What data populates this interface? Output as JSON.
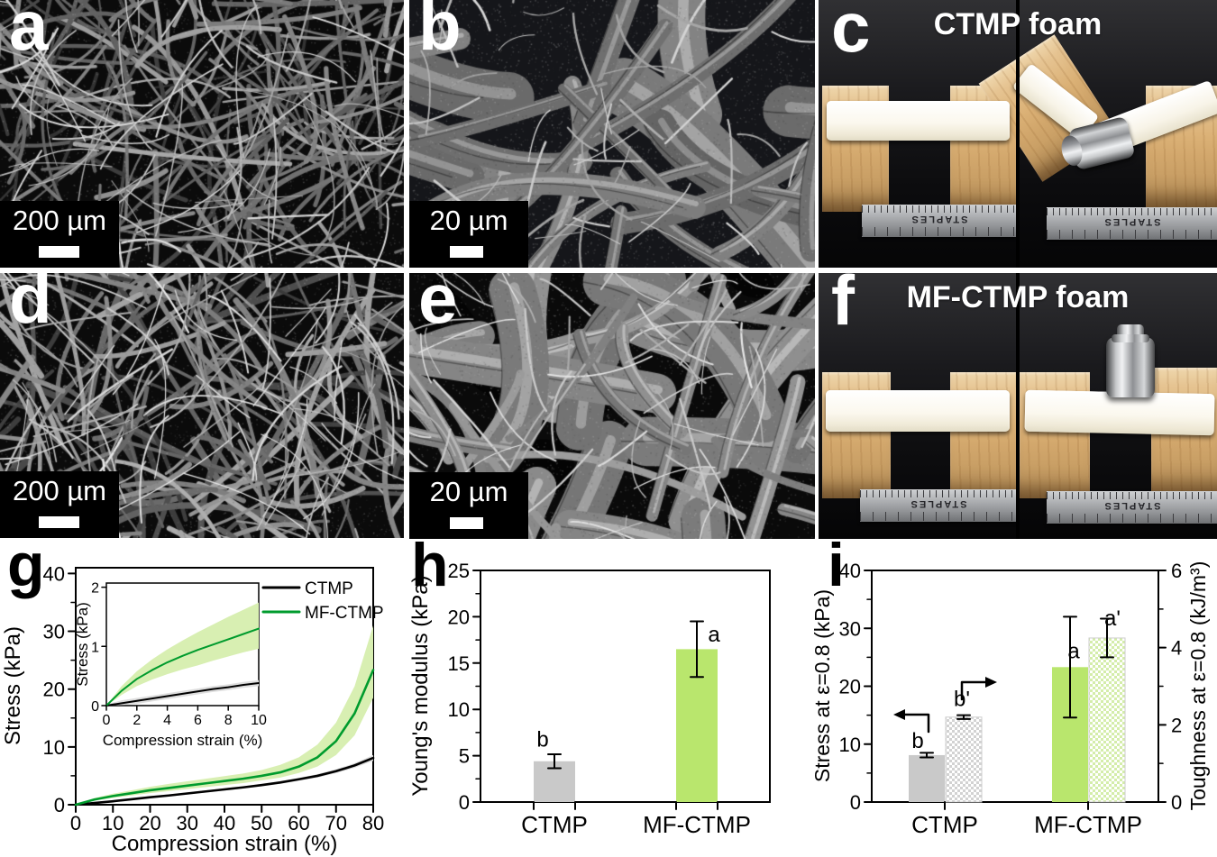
{
  "figure": {
    "panels": {
      "a": {
        "letter": "a",
        "scalebar": "200 µm"
      },
      "b": {
        "letter": "b",
        "scalebar": "20 µm"
      },
      "c": {
        "letter": "c",
        "title": "CTMP foam",
        "ruler_text": "STAPLES"
      },
      "d": {
        "letter": "d",
        "scalebar": "200 µm"
      },
      "e": {
        "letter": "e",
        "scalebar": "20 µm"
      },
      "f": {
        "letter": "f",
        "title": "MF-CTMP foam",
        "ruler_text": "STAPLES"
      },
      "g": {
        "letter": "g"
      },
      "h": {
        "letter": "h"
      },
      "i": {
        "letter": "i"
      }
    }
  },
  "colors": {
    "curve_black": "#000000",
    "curve_green": "#009b2d",
    "band_green": "#d8efb2",
    "band_gray": "#dedede",
    "bar_gray": "#c9c9c9",
    "bar_green": "#b9e66d",
    "checker_gray": "#d2d2d2",
    "checker_green": "#d4edaa"
  },
  "chart_data": [
    {
      "id": "g",
      "type": "line",
      "xlabel": "Compression strain (%)",
      "ylabel": "Stress (kPa)",
      "xlim": [
        0,
        80
      ],
      "ylim": [
        0,
        40
      ],
      "xticks": [
        0,
        10,
        20,
        30,
        40,
        50,
        60,
        70,
        80
      ],
      "yticks": [
        0,
        10,
        20,
        30,
        40
      ],
      "legend": {
        "position": "top-right",
        "entries": [
          {
            "label": "CTMP",
            "color": "#000000"
          },
          {
            "label": "MF-CTMP",
            "color": "#009b2d"
          }
        ]
      },
      "series": [
        {
          "name": "CTMP",
          "color": "#000000",
          "band_color": "#dedede",
          "x": [
            0,
            5,
            10,
            15,
            20,
            25,
            30,
            35,
            40,
            45,
            50,
            55,
            60,
            65,
            70,
            75,
            80
          ],
          "y": [
            0,
            0.3,
            0.6,
            0.95,
            1.3,
            1.6,
            1.95,
            2.3,
            2.65,
            3.0,
            3.4,
            3.85,
            4.4,
            5.0,
            5.8,
            6.8,
            8.1
          ],
          "band_upper": [
            0.05,
            0.45,
            0.78,
            1.12,
            1.48,
            1.8,
            2.15,
            2.5,
            2.85,
            3.2,
            3.62,
            4.1,
            4.65,
            5.3,
            6.15,
            7.2,
            8.6
          ],
          "band_lower": [
            0,
            0.18,
            0.45,
            0.78,
            1.12,
            1.42,
            1.75,
            2.1,
            2.45,
            2.8,
            3.18,
            3.6,
            4.15,
            4.7,
            5.45,
            6.4,
            7.6
          ]
        },
        {
          "name": "MF-CTMP",
          "color": "#009b2d",
          "band_color": "#d8efb2",
          "x": [
            0,
            5,
            10,
            15,
            20,
            25,
            30,
            35,
            40,
            45,
            50,
            55,
            60,
            65,
            70,
            75,
            80
          ],
          "y": [
            0,
            0.9,
            1.5,
            2.0,
            2.5,
            2.9,
            3.3,
            3.7,
            4.1,
            4.5,
            5.0,
            5.6,
            6.6,
            8.2,
            11.0,
            15.8,
            23.3
          ],
          "band_upper": [
            0,
            1.15,
            1.9,
            2.5,
            3.1,
            3.6,
            4.05,
            4.5,
            4.95,
            5.4,
            6.0,
            6.9,
            8.2,
            10.4,
            14.2,
            20.5,
            31.0
          ],
          "band_lower": [
            0,
            0.7,
            1.2,
            1.6,
            2.0,
            2.35,
            2.7,
            3.05,
            3.4,
            3.75,
            4.2,
            4.7,
            5.5,
            6.6,
            8.6,
            12.0,
            18.5
          ]
        }
      ],
      "inset": {
        "xlabel": "Compression strain (%)",
        "ylabel": "Stress (kPa)",
        "xlim": [
          0,
          10
        ],
        "ylim": [
          0,
          2
        ],
        "xticks": [
          0,
          2,
          4,
          6,
          8,
          10
        ],
        "yticks": [
          0,
          1,
          2
        ],
        "series": [
          {
            "name": "CTMP",
            "color": "#000000",
            "band_color": "#dedede",
            "x": [
              0,
              1,
              2,
              3,
              4,
              5,
              6,
              7,
              8,
              9,
              10
            ],
            "y": [
              0,
              0.04,
              0.08,
              0.12,
              0.16,
              0.2,
              0.24,
              0.28,
              0.31,
              0.35,
              0.38
            ],
            "band_upper": [
              0.02,
              0.09,
              0.13,
              0.17,
              0.21,
              0.25,
              0.29,
              0.33,
              0.36,
              0.4,
              0.43
            ],
            "band_lower": [
              0,
              0.01,
              0.03,
              0.07,
              0.11,
              0.15,
              0.19,
              0.23,
              0.26,
              0.3,
              0.33
            ]
          },
          {
            "name": "MF-CTMP",
            "color": "#009b2d",
            "band_color": "#d8efb2",
            "x": [
              0,
              1,
              2,
              3,
              4,
              5,
              6,
              7,
              8,
              9,
              10
            ],
            "y": [
              0,
              0.25,
              0.45,
              0.6,
              0.73,
              0.84,
              0.94,
              1.03,
              1.12,
              1.21,
              1.3
            ],
            "band_upper": [
              0,
              0.33,
              0.58,
              0.78,
              0.95,
              1.1,
              1.24,
              1.37,
              1.5,
              1.62,
              1.74
            ],
            "band_lower": [
              0,
              0.18,
              0.33,
              0.44,
              0.53,
              0.61,
              0.68,
              0.76,
              0.83,
              0.9,
              0.96
            ]
          }
        ]
      }
    },
    {
      "id": "h",
      "type": "bar",
      "ylabel": "Young's modulus (kPa)",
      "ylim": [
        0,
        25
      ],
      "yticks": [
        0,
        5,
        10,
        15,
        20,
        25
      ],
      "categories": [
        "CTMP",
        "MF-CTMP"
      ],
      "values": [
        4.4,
        16.5
      ],
      "errors": [
        0.75,
        3.0
      ],
      "sig_labels": [
        "b",
        "a"
      ],
      "bar_colors": [
        "#c9c9c9",
        "#b9e66d"
      ]
    },
    {
      "id": "i",
      "type": "bar-dual",
      "left_ylabel": "Stress at ε=0.8 (kPa)",
      "right_ylabel": "Toughness at ε=0.8 (kJ/m³)",
      "left_ylim": [
        0,
        40
      ],
      "right_ylim": [
        0,
        6
      ],
      "left_yticks": [
        0,
        10,
        20,
        30,
        40
      ],
      "right_yticks": [
        0,
        2,
        4,
        6
      ],
      "categories": [
        "CTMP",
        "MF-CTMP"
      ],
      "series": [
        {
          "name": "Stress at ε=0.8",
          "axis": "left",
          "style": "solid",
          "values": [
            8.1,
            23.3
          ],
          "errors": [
            0.4,
            8.7
          ],
          "sig_labels": [
            "b",
            "a"
          ],
          "colors": [
            "#c9c9c9",
            "#b9e66d"
          ]
        },
        {
          "name": "Toughness at ε=0.8",
          "axis": "right",
          "style": "checker",
          "values": [
            2.2,
            4.25
          ],
          "errors": [
            0.05,
            0.5
          ],
          "sig_labels": [
            "b'",
            "a'"
          ],
          "colors": [
            "#d2d2d2",
            "#d4edaa"
          ]
        }
      ]
    }
  ]
}
